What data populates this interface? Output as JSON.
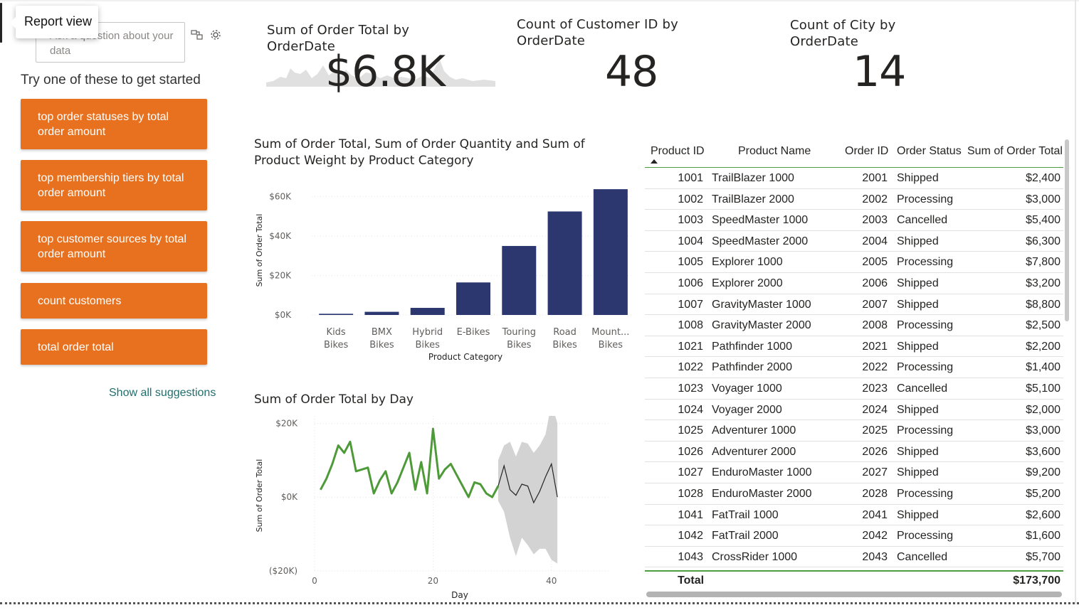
{
  "qa": {
    "tooltip": "Report view",
    "placeholder": "Ask a question about your data",
    "try_text": "Try one of these to get started",
    "suggestions": [
      "top order statuses by total order amount",
      "top membership tiers by total order amount",
      "top customer sources by total order amount",
      "count customers",
      "total order total"
    ],
    "show_all": "Show all suggestions",
    "accent": "#E8711F"
  },
  "kpis": [
    {
      "title": "Sum of Order Total by OrderDate",
      "value": "$6.8K"
    },
    {
      "title": "Count of Customer ID by OrderDate",
      "value": "48"
    },
    {
      "title": "Count of City by OrderDate",
      "value": "14"
    }
  ],
  "chart_data": [
    {
      "type": "bar",
      "title": "Sum of Order Total, Sum of Order Quantity and Sum of Product Weight by Product Category",
      "xlabel": "Product Category",
      "ylabel": "Sum of Order Total",
      "categories": [
        "Kids Bikes",
        "BMX Bikes",
        "Hybrid Bikes",
        "E-Bikes",
        "Touring Bikes",
        "Road Bikes",
        "Mount... Bikes"
      ],
      "values": [
        600,
        1600,
        3600,
        16500,
        35000,
        52500,
        63800
      ],
      "yticks": [
        "$0K",
        "$20K",
        "$40K",
        "$60K"
      ],
      "ylim": [
        0,
        66000
      ],
      "color": "#2B376E"
    },
    {
      "type": "line",
      "title": "Sum of Order Total by Day",
      "xlabel": "Day",
      "ylabel": "Sum of Order Total",
      "yticks": [
        "($20K)",
        "$0K",
        "$20K"
      ],
      "xticks": [
        "0",
        "20",
        "40"
      ],
      "ylim": [
        -20000,
        22000
      ],
      "xlim": [
        0,
        50
      ],
      "series_color": "#4E9A39",
      "forecast_color": "#252423",
      "band_color": "#D3D3D3",
      "actual": {
        "x": [
          1,
          2,
          3,
          4,
          5,
          6,
          7,
          8,
          9,
          10,
          11,
          12,
          13,
          14,
          15,
          16,
          17,
          18,
          19,
          20,
          21,
          22,
          23,
          24,
          25,
          26,
          27,
          28,
          29,
          30,
          31
        ],
        "y": [
          2000,
          5000,
          9000,
          14000,
          12000,
          15000,
          7000,
          7500,
          8000,
          1000,
          4500,
          7000,
          1000,
          4000,
          8000,
          12000,
          2000,
          9500,
          1000,
          18500,
          5000,
          7500,
          9000,
          6000,
          3000,
          0,
          4000,
          3500,
          1000,
          0,
          3000
        ]
      },
      "forecast": {
        "x": [
          31,
          32,
          33,
          34,
          35,
          36,
          37,
          38,
          39,
          40,
          41
        ],
        "y": [
          3000,
          8500,
          2000,
          500,
          3500,
          3000,
          -1500,
          1500,
          5500,
          9000,
          0
        ],
        "upper": [
          10000,
          14000,
          15000,
          11000,
          15000,
          14500,
          12000,
          14000,
          17000,
          25500,
          20000
        ],
        "lower": [
          -1000,
          -4000,
          -11000,
          -16000,
          -11000,
          -13000,
          -15500,
          -14000,
          -14000,
          -17000,
          -18000
        ]
      }
    }
  ],
  "table": {
    "columns": [
      "Product ID",
      "Product Name",
      "Order ID",
      "Order Status",
      "Sum of Order Total"
    ],
    "rows": [
      [
        "1001",
        "TrailBlazer 1000",
        "2001",
        "Shipped",
        "$2,400"
      ],
      [
        "1002",
        "TrailBlazer 2000",
        "2002",
        "Processing",
        "$3,000"
      ],
      [
        "1003",
        "SpeedMaster 1000",
        "2003",
        "Cancelled",
        "$5,400"
      ],
      [
        "1004",
        "SpeedMaster 2000",
        "2004",
        "Shipped",
        "$6,300"
      ],
      [
        "1005",
        "Explorer 1000",
        "2005",
        "Processing",
        "$7,800"
      ],
      [
        "1006",
        "Explorer 2000",
        "2006",
        "Shipped",
        "$3,200"
      ],
      [
        "1007",
        "GravityMaster 1000",
        "2007",
        "Shipped",
        "$8,800"
      ],
      [
        "1008",
        "GravityMaster 2000",
        "2008",
        "Processing",
        "$2,500"
      ],
      [
        "1021",
        "Pathfinder 1000",
        "2021",
        "Shipped",
        "$2,200"
      ],
      [
        "1022",
        "Pathfinder 2000",
        "2022",
        "Processing",
        "$1,400"
      ],
      [
        "1023",
        "Voyager 1000",
        "2023",
        "Cancelled",
        "$5,100"
      ],
      [
        "1024",
        "Voyager 2000",
        "2024",
        "Shipped",
        "$2,000"
      ],
      [
        "1025",
        "Adventurer 1000",
        "2025",
        "Processing",
        "$3,000"
      ],
      [
        "1026",
        "Adventurer 2000",
        "2026",
        "Shipped",
        "$3,600"
      ],
      [
        "1027",
        "EnduroMaster 1000",
        "2027",
        "Shipped",
        "$9,200"
      ],
      [
        "1028",
        "EnduroMaster 2000",
        "2028",
        "Processing",
        "$5,200"
      ],
      [
        "1041",
        "FatTrail 1000",
        "2041",
        "Shipped",
        "$2,600"
      ],
      [
        "1042",
        "FatTrail 2000",
        "2042",
        "Processing",
        "$1,600"
      ],
      [
        "1043",
        "CrossRider 1000",
        "2043",
        "Cancelled",
        "$5,700"
      ]
    ],
    "total_label": "Total",
    "total_value": "$173,700"
  }
}
